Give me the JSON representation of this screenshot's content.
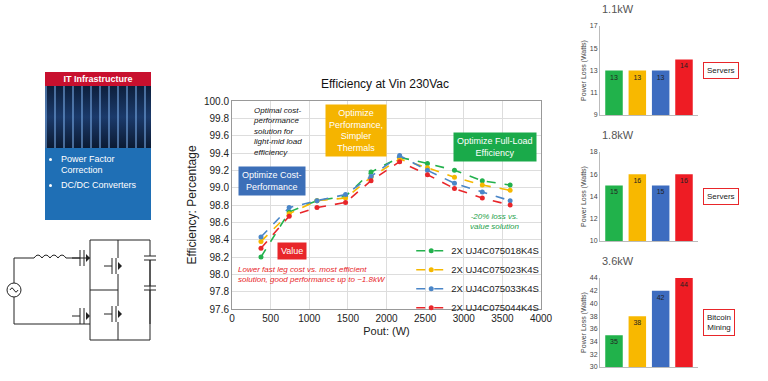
{
  "infrastructure_panel": {
    "title": "IT Infrastructure",
    "items": [
      "Power Factor Correction",
      "DC/DC Converters"
    ]
  },
  "chart_data": [
    {
      "type": "line",
      "title": "Efficiency at Vin 230Vac",
      "x_label": "Pout: (W)",
      "y_label": "Efficiency: Percentage",
      "x": [
        375,
        740,
        1100,
        1470,
        1800,
        2170,
        2530,
        2880,
        3240,
        3600
      ],
      "series": [
        {
          "name": "2X UJ4C075018K4S",
          "color": "#23b14d",
          "values": [
            98.2,
            98.72,
            98.85,
            98.9,
            99.18,
            99.35,
            99.28,
            99.2,
            99.08,
            99.03
          ]
        },
        {
          "name": "2X UJ4C075023K4S",
          "color": "#f5b800",
          "values": [
            98.38,
            98.7,
            98.85,
            98.88,
            99.12,
            99.33,
            99.23,
            99.12,
            99.03,
            98.97
          ]
        },
        {
          "name": "2X UJ4C075033K4S",
          "color": "#4a86c8",
          "values": [
            98.43,
            98.77,
            98.85,
            98.92,
            99.13,
            99.37,
            99.2,
            99.05,
            98.95,
            98.85
          ]
        },
        {
          "name": "2X UJ4C075044K4S",
          "color": "#e8262a",
          "values": [
            98.3,
            98.67,
            98.77,
            98.83,
            99.08,
            99.3,
            99.15,
            98.99,
            98.88,
            98.8
          ]
        }
      ],
      "xlim": [
        0,
        4000
      ],
      "xticks": [
        0,
        500,
        1000,
        1500,
        2000,
        2500,
        3000,
        3500,
        4000
      ],
      "ylim": [
        97.6,
        100
      ],
      "yticks": [
        97.6,
        97.8,
        {
          "value": 98,
          "label": "98.0"
        },
        98.2,
        98.4,
        98.6,
        98.8,
        {
          "value": 99,
          "label": "99.0"
        },
        99.2,
        99.4,
        99.6,
        99.8,
        {
          "value": 100,
          "label": "100.0"
        }
      ],
      "grid": true,
      "legend": "lower right",
      "marker": "circle",
      "line_style": "dash",
      "annotations": [
        "Optimal cost-performance solution for light-mid load efficiency",
        "Optimize Cost-Performance",
        "Optimize Performance, Simpler Thermals",
        "Optimize Full-Load Efficiency",
        "Value",
        "Lower fast leg cost vs. most efficient solution, good performance up to ~1.8kW",
        "-20% loss vs. value solution"
      ]
    },
    {
      "type": "bar",
      "title": "1.1kW",
      "y_label": "Power Loss (Watts)",
      "categories": [
        null,
        null,
        null,
        null
      ],
      "values": [
        13,
        13,
        13,
        14
      ],
      "colors": [
        "#21b24b",
        "#f8b800",
        "#3d6cc0",
        "#ee1c24"
      ],
      "ylim": [
        9,
        17
      ],
      "yticks": [
        9,
        11,
        13,
        15,
        17
      ],
      "data_labels": true,
      "tick_labels": "y",
      "annotations": [
        "Servers"
      ]
    },
    {
      "type": "bar",
      "title": "1.8kW",
      "y_label": "Power Loss (Watts)",
      "categories": [
        null,
        null,
        null,
        null
      ],
      "values": [
        15,
        16,
        15,
        16
      ],
      "colors": [
        "#21b24b",
        "#f8b800",
        "#3d6cc0",
        "#ee1c24"
      ],
      "ylim": [
        10,
        18
      ],
      "yticks": [
        10,
        12,
        14,
        16,
        18
      ],
      "data_labels": true,
      "tick_labels": "y",
      "annotations": [
        "Servers"
      ]
    },
    {
      "type": "bar",
      "title": "3.6kW",
      "y_label": "Power Loss (Watts)",
      "categories": [
        null,
        null,
        null,
        null
      ],
      "values": [
        35,
        38,
        42,
        44
      ],
      "colors": [
        "#21b24b",
        "#f8b800",
        "#3d6cc0",
        "#ee1c24"
      ],
      "ylim": [
        30,
        44
      ],
      "yticks": [
        30,
        32,
        34,
        36,
        38,
        40,
        42,
        44
      ],
      "data_labels": true,
      "tick_labels": "y",
      "annotations": [
        "Bitcoin Mining"
      ]
    }
  ]
}
